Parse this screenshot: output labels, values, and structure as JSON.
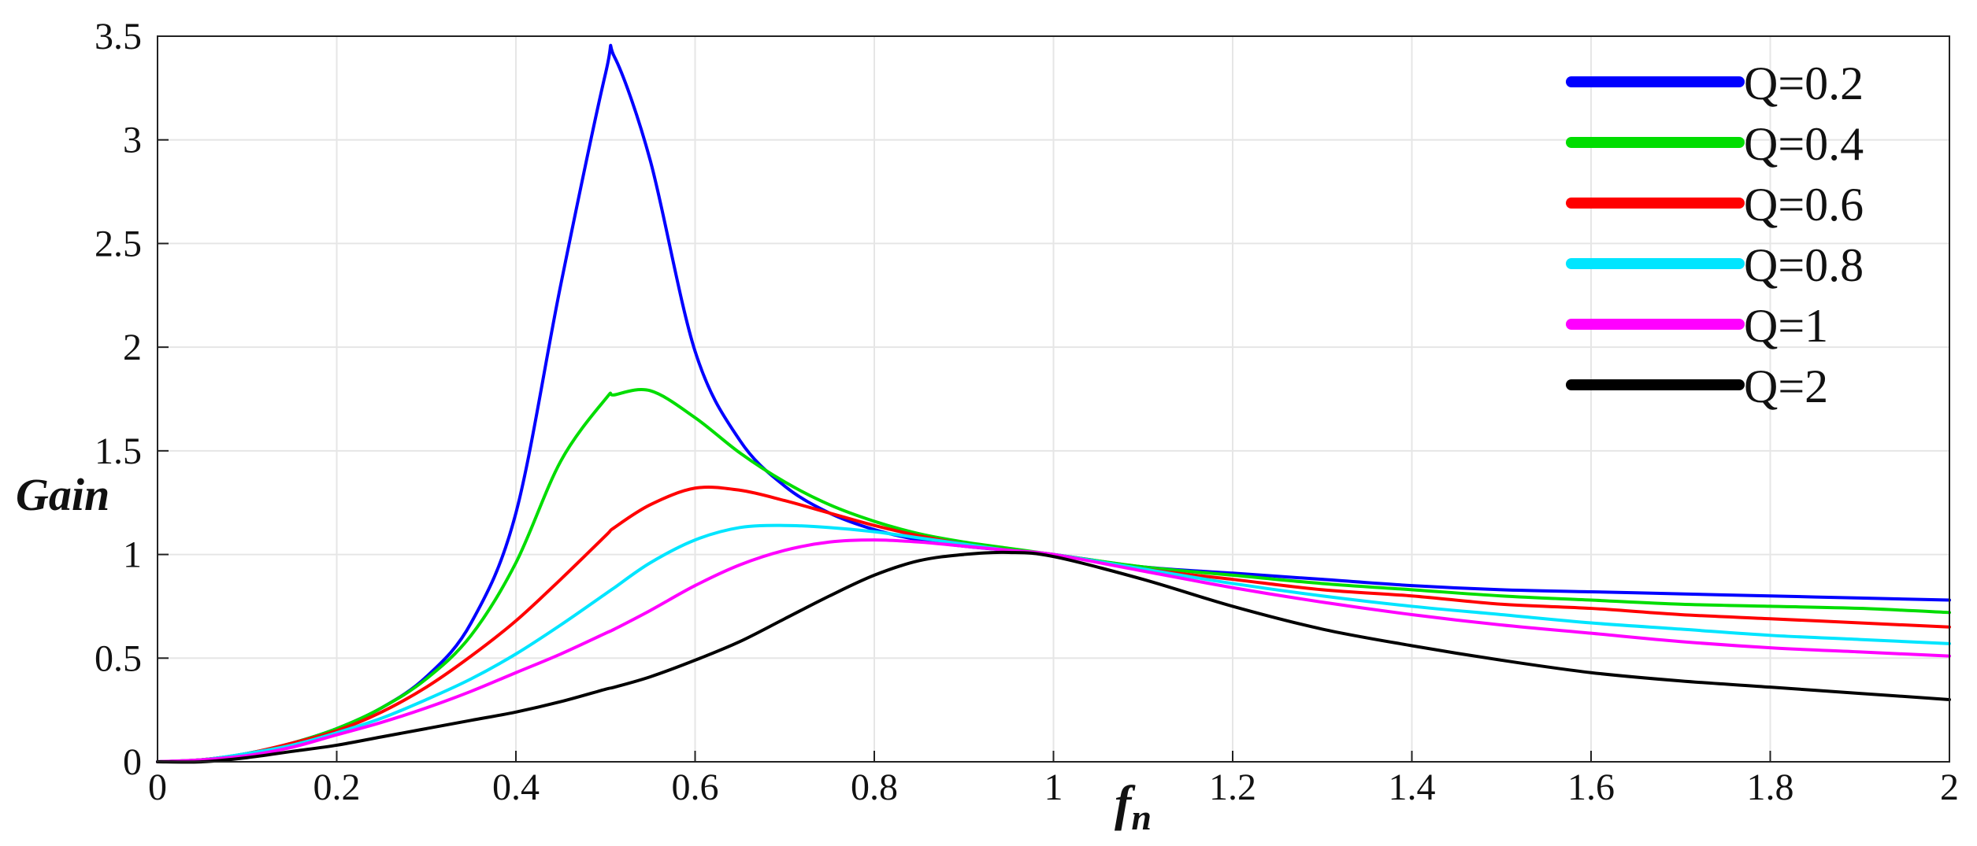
{
  "chart_data": {
    "type": "line",
    "title": "",
    "xlabel": "f",
    "xlabel_subscript": "n",
    "ylabel": "Gain",
    "xlim": [
      0,
      2
    ],
    "ylim": [
      0,
      3.5
    ],
    "grid": true,
    "legend_position": "top-right",
    "x_ticks": [
      "0",
      "0.2",
      "0.4",
      "0.6",
      "0.8",
      "1",
      "1.2",
      "1.4",
      "1.6",
      "1.8",
      "2"
    ],
    "y_ticks": [
      "0",
      "0.5",
      "1",
      "1.5",
      "2",
      "2.5",
      "3",
      "3.5"
    ],
    "x": [
      0.05,
      0.1,
      0.15,
      0.2,
      0.25,
      0.3,
      0.35,
      0.4,
      0.45,
      0.5,
      0.51,
      0.55,
      0.6,
      0.65,
      0.7,
      0.75,
      0.8,
      0.85,
      0.9,
      0.95,
      1.0,
      1.1,
      1.2,
      1.3,
      1.4,
      1.5,
      1.6,
      1.7,
      1.8,
      1.9,
      2.0
    ],
    "series": [
      {
        "name": "Q=0.2",
        "color": "#0000ff",
        "values": [
          0.01,
          0.04,
          0.09,
          0.16,
          0.26,
          0.41,
          0.67,
          1.2,
          2.3,
          3.32,
          3.4,
          2.9,
          1.98,
          1.55,
          1.33,
          1.2,
          1.12,
          1.07,
          1.04,
          1.02,
          1.0,
          0.94,
          0.91,
          0.88,
          0.85,
          0.83,
          0.82,
          0.81,
          0.8,
          0.79,
          0.78
        ]
      },
      {
        "name": "Q=0.4",
        "color": "#00dd00",
        "values": [
          0.01,
          0.04,
          0.09,
          0.16,
          0.26,
          0.4,
          0.61,
          0.96,
          1.45,
          1.75,
          1.77,
          1.79,
          1.66,
          1.49,
          1.35,
          1.24,
          1.16,
          1.1,
          1.06,
          1.03,
          1.0,
          0.94,
          0.9,
          0.86,
          0.83,
          0.8,
          0.78,
          0.76,
          0.75,
          0.74,
          0.72
        ]
      },
      {
        "name": "Q=0.6",
        "color": "#ff0000",
        "values": [
          0.01,
          0.04,
          0.09,
          0.15,
          0.24,
          0.36,
          0.51,
          0.68,
          0.88,
          1.09,
          1.13,
          1.24,
          1.32,
          1.31,
          1.26,
          1.2,
          1.14,
          1.09,
          1.05,
          1.02,
          1.0,
          0.93,
          0.88,
          0.83,
          0.8,
          0.76,
          0.74,
          0.71,
          0.69,
          0.67,
          0.65
        ]
      },
      {
        "name": "Q=0.8",
        "color": "#00e5ff",
        "values": [
          0.01,
          0.04,
          0.08,
          0.14,
          0.21,
          0.3,
          0.4,
          0.52,
          0.66,
          0.81,
          0.84,
          0.96,
          1.07,
          1.13,
          1.14,
          1.13,
          1.11,
          1.08,
          1.05,
          1.02,
          1.0,
          0.93,
          0.86,
          0.8,
          0.75,
          0.71,
          0.67,
          0.64,
          0.61,
          0.59,
          0.57
        ]
      },
      {
        "name": "Q=1",
        "color": "#ff00ff",
        "values": [
          0.01,
          0.03,
          0.07,
          0.13,
          0.19,
          0.26,
          0.34,
          0.43,
          0.52,
          0.62,
          0.64,
          0.73,
          0.85,
          0.95,
          1.02,
          1.06,
          1.07,
          1.06,
          1.04,
          1.02,
          1.0,
          0.92,
          0.84,
          0.77,
          0.71,
          0.66,
          0.62,
          0.58,
          0.55,
          0.53,
          0.51
        ]
      },
      {
        "name": "Q=2",
        "color": "#000000",
        "values": [
          0.0,
          0.02,
          0.05,
          0.08,
          0.12,
          0.16,
          0.2,
          0.24,
          0.29,
          0.35,
          0.36,
          0.41,
          0.49,
          0.58,
          0.69,
          0.8,
          0.9,
          0.97,
          1.0,
          1.01,
          0.99,
          0.88,
          0.75,
          0.64,
          0.56,
          0.49,
          0.43,
          0.39,
          0.36,
          0.33,
          0.3
        ]
      }
    ]
  }
}
